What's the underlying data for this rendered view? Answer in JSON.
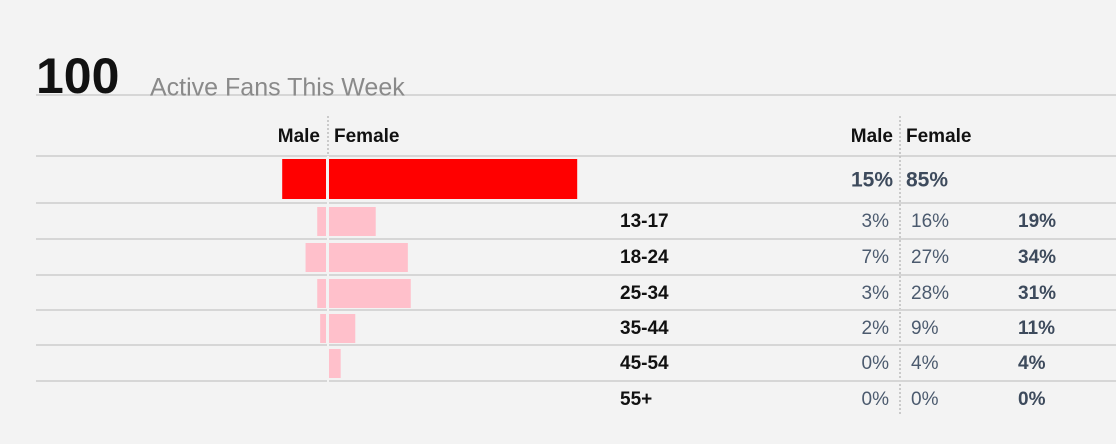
{
  "header": {
    "count": 100,
    "label": "Active Fans This Week"
  },
  "columns": {
    "male": "Male",
    "female": "Female"
  },
  "total": {
    "male": 15,
    "female": 85,
    "male_label": "15%",
    "female_label": "85%"
  },
  "rows": [
    {
      "age": "13-17",
      "male": 3,
      "female": 16,
      "total": 19,
      "male_label": "3%",
      "female_label": "16%",
      "total_label": "19%"
    },
    {
      "age": "18-24",
      "male": 7,
      "female": 27,
      "total": 34,
      "male_label": "7%",
      "female_label": "27%",
      "total_label": "34%"
    },
    {
      "age": "25-34",
      "male": 3,
      "female": 28,
      "total": 31,
      "male_label": "3%",
      "female_label": "28%",
      "total_label": "31%"
    },
    {
      "age": "35-44",
      "male": 2,
      "female": 9,
      "total": 11,
      "male_label": "2%",
      "female_label": "9%",
      "total_label": "11%"
    },
    {
      "age": "45-54",
      "male": 0,
      "female": 4,
      "total": 4,
      "male_label": "0%",
      "female_label": "4%",
      "total_label": "4%"
    },
    {
      "age": "55+",
      "male": 0,
      "female": 0,
      "total": 0,
      "male_label": "0%",
      "female_label": "0%",
      "total_label": "0%"
    }
  ]
}
